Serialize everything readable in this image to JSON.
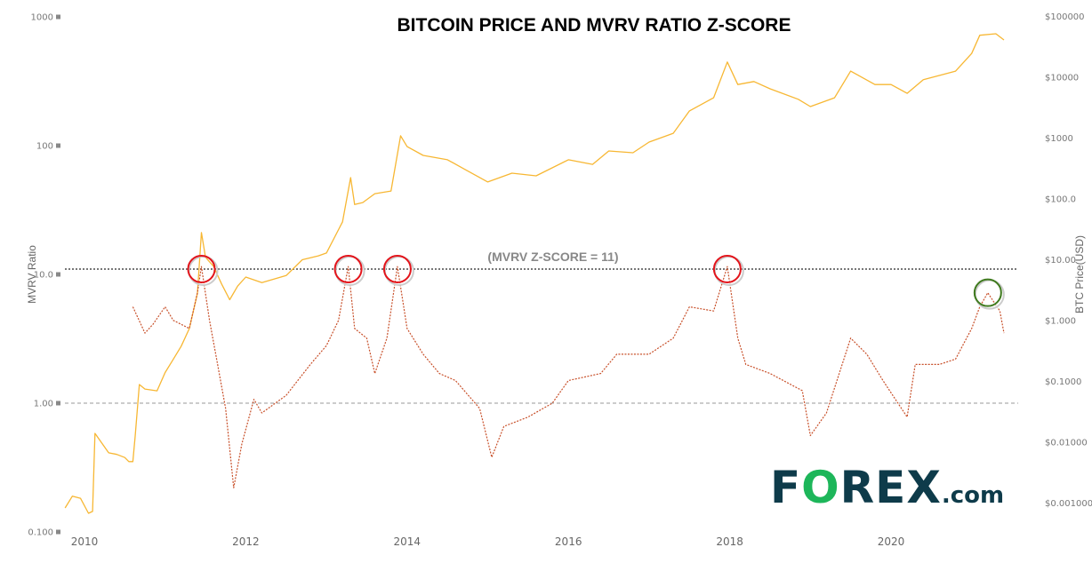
{
  "chart_data": {
    "type": "line",
    "title": "BITCOIN PRICE AND MVRV RATIO Z-SCORE",
    "ylabel_left": "MVRV Ratio",
    "ylabel_right": "BTC Price(USD)",
    "xlim": [
      2009.75,
      2021.6
    ],
    "ylim_left": [
      0.1,
      1000
    ],
    "ylim_right": [
      0.0005,
      130000
    ],
    "scale": "log",
    "x_ticks": [
      "2010",
      "2012",
      "2014",
      "2016",
      "2018",
      "2020"
    ],
    "x_tick_values": [
      2010,
      2012,
      2014,
      2016,
      2018,
      2020
    ],
    "left_ticks": [
      "1000",
      "100",
      "10.0",
      "1.00",
      "0.100"
    ],
    "left_tick_values": [
      1000,
      100,
      10,
      1,
      0.1
    ],
    "right_ticks": [
      "$100000",
      "$10000",
      "$1000",
      "$100.0",
      "$10.00",
      "$1.000",
      "$0.1000",
      "$0.01000",
      "$0.001000"
    ],
    "right_tick_values": [
      100000,
      10000,
      1000,
      100,
      10,
      1,
      0.1,
      0.01,
      0.001
    ],
    "annotation": "(MVRV Z-SCORE = 11)",
    "threshold": 11,
    "reference_line": 1,
    "colors": {
      "price": "#f7b733",
      "mvrv": "#c8502a",
      "circle_red": "#e3141b",
      "circle_green": "#3f7a1e",
      "threshold": "#777777"
    },
    "series": [
      {
        "name": "BTC Price",
        "axis": "right",
        "style": "solid",
        "x": [
          2009.76,
          2009.85,
          2009.95,
          2010.05,
          2010.1,
          2010.13,
          2010.3,
          2010.4,
          2010.5,
          2010.55,
          2010.6,
          2010.63,
          2010.68,
          2010.75,
          2010.9,
          2011.0,
          2011.1,
          2011.2,
          2011.3,
          2011.4,
          2011.45,
          2011.5,
          2011.6,
          2011.7,
          2011.8,
          2011.9,
          2012.0,
          2012.2,
          2012.5,
          2012.7,
          2012.9,
          2013.0,
          2013.2,
          2013.3,
          2013.35,
          2013.45,
          2013.6,
          2013.8,
          2013.92,
          2014.0,
          2014.2,
          2014.5,
          2014.7,
          2015.0,
          2015.3,
          2015.6,
          2016.0,
          2016.3,
          2016.5,
          2016.8,
          2017.0,
          2017.3,
          2017.5,
          2017.8,
          2017.97,
          2018.1,
          2018.3,
          2018.5,
          2018.85,
          2019.0,
          2019.3,
          2019.5,
          2019.8,
          2020.0,
          2020.2,
          2020.4,
          2020.8,
          2021.0,
          2021.1,
          2021.3,
          2021.4
        ],
        "values": [
          0.00083,
          0.0013,
          0.0012,
          0.00068,
          0.00073,
          0.014,
          0.0067,
          0.0063,
          0.0056,
          0.0048,
          0.0048,
          0.013,
          0.089,
          0.075,
          0.07,
          0.14,
          0.23,
          0.38,
          0.74,
          2.8,
          28,
          11,
          7.8,
          4.0,
          2.2,
          3.7,
          5.2,
          4.2,
          5.5,
          10,
          11.6,
          12.9,
          42,
          224,
          81,
          87,
          122,
          135,
          1090,
          725,
          520,
          440,
          315,
          190,
          265,
          240,
          440,
          370,
          615,
          575,
          860,
          1200,
          2800,
          4600,
          17800,
          7600,
          8500,
          6450,
          4350,
          3300,
          4600,
          12600,
          7600,
          7600,
          5450,
          9100,
          12600,
          24600,
          49000,
          52000,
          41000
        ]
      },
      {
        "name": "MVRV Ratio",
        "axis": "left",
        "style": "dotted",
        "x": [
          2010.6,
          2010.75,
          2010.85,
          2011.0,
          2011.1,
          2011.3,
          2011.4,
          2011.45,
          2011.55,
          2011.65,
          2011.75,
          2011.85,
          2011.95,
          2012.1,
          2012.2,
          2012.5,
          2012.8,
          2013.0,
          2013.15,
          2013.27,
          2013.35,
          2013.5,
          2013.6,
          2013.75,
          2013.88,
          2014.0,
          2014.2,
          2014.4,
          2014.6,
          2014.9,
          2015.05,
          2015.2,
          2015.5,
          2015.8,
          2016.0,
          2016.4,
          2016.6,
          2017.0,
          2017.3,
          2017.5,
          2017.8,
          2017.97,
          2018.1,
          2018.2,
          2018.5,
          2018.9,
          2019.0,
          2019.2,
          2019.5,
          2019.7,
          2019.9,
          2020.2,
          2020.3,
          2020.6,
          2020.8,
          2021.0,
          2021.1,
          2021.2,
          2021.35,
          2021.4
        ],
        "values": [
          5.6,
          3.5,
          4.1,
          5.6,
          4.4,
          3.8,
          7.2,
          11.5,
          4.4,
          2.0,
          0.91,
          0.22,
          0.48,
          1.07,
          0.84,
          1.15,
          2.0,
          2.8,
          4.4,
          11.5,
          3.8,
          3.2,
          1.7,
          3.2,
          11.5,
          3.8,
          2.4,
          1.7,
          1.5,
          0.91,
          0.38,
          0.66,
          0.78,
          1.0,
          1.5,
          1.7,
          2.4,
          2.4,
          3.2,
          5.6,
          5.2,
          11.5,
          3.2,
          2.0,
          1.7,
          1.25,
          0.56,
          0.84,
          3.2,
          2.4,
          1.5,
          0.78,
          2.0,
          2.0,
          2.2,
          3.8,
          5.6,
          7.2,
          5.2,
          3.5
        ]
      }
    ],
    "highlight_circles": [
      {
        "x": 2011.45,
        "value": 11,
        "color": "red"
      },
      {
        "x": 2013.27,
        "value": 11,
        "color": "red"
      },
      {
        "x": 2013.88,
        "value": 11,
        "color": "red"
      },
      {
        "x": 2017.97,
        "value": 11,
        "color": "red"
      },
      {
        "x": 2021.2,
        "value": 7.2,
        "color": "green"
      }
    ]
  },
  "logo": {
    "left": "F",
    "o": "O",
    "right": "REX",
    "suffix": ".com"
  }
}
